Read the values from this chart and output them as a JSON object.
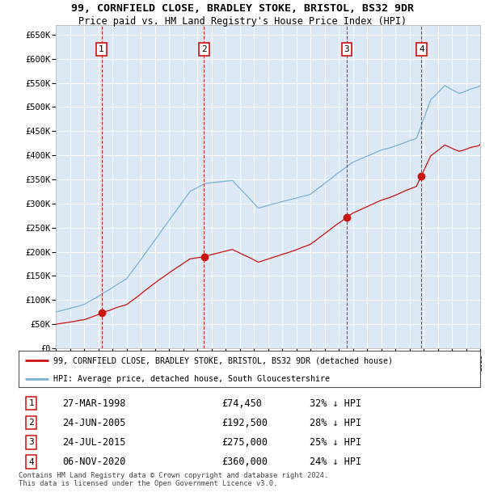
{
  "title1": "99, CORNFIELD CLOSE, BRADLEY STOKE, BRISTOL, BS32 9DR",
  "title2": "Price paid vs. HM Land Registry's House Price Index (HPI)",
  "bg_color": "#dce9f5",
  "grid_color": "#ffffff",
  "hpi_color": "#7ab0d4",
  "price_color": "#cc1111",
  "ylim": [
    0,
    670000
  ],
  "yticks": [
    0,
    50000,
    100000,
    150000,
    200000,
    250000,
    300000,
    350000,
    400000,
    450000,
    500000,
    550000,
    600000,
    650000
  ],
  "sales": [
    {
      "num": 1,
      "date_label": "27-MAR-1998",
      "price": 74450,
      "pct": "32%",
      "year": 1998.23
    },
    {
      "num": 2,
      "date_label": "24-JUN-2005",
      "price": 192500,
      "pct": "28%",
      "year": 2005.48
    },
    {
      "num": 3,
      "date_label": "24-JUL-2015",
      "price": 275000,
      "pct": "25%",
      "year": 2015.56
    },
    {
      "num": 4,
      "date_label": "06-NOV-2020",
      "price": 360000,
      "pct": "24%",
      "year": 2020.85
    }
  ],
  "legend_label_price": "99, CORNFIELD CLOSE, BRADLEY STOKE, BRISTOL, BS32 9DR (detached house)",
  "legend_label_hpi": "HPI: Average price, detached house, South Gloucestershire",
  "footer": "Contains HM Land Registry data © Crown copyright and database right 2024.\nThis data is licensed under the Open Government Licence v3.0.",
  "xmin": 1995,
  "xmax": 2025
}
